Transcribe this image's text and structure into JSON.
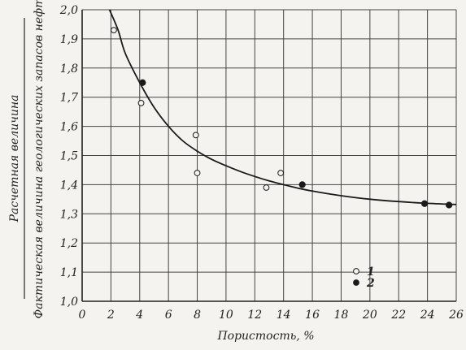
{
  "chart_data": {
    "type": "scatter",
    "title": "",
    "xlabel": "Пористость, %",
    "ylabel_numerator": "Расчетная величина",
    "ylabel_denominator": "Фактическая величина геологических запасов нефти",
    "xlim": [
      0,
      26
    ],
    "ylim": [
      1.0,
      2.0
    ],
    "x_ticks": [
      "0",
      "2",
      "4",
      "6",
      "8",
      "10",
      "12",
      "14",
      "16",
      "18",
      "20",
      "22",
      "24",
      "26"
    ],
    "y_ticks": [
      "1,0",
      "1,1",
      "1,2",
      "1,3",
      "1,4",
      "1,5",
      "1,6",
      "1,7",
      "1,8",
      "1,9",
      "2,0"
    ],
    "grid": true,
    "series": [
      {
        "name": "1",
        "marker": "open-circle",
        "points": [
          {
            "x": 2.2,
            "y": 1.93
          },
          {
            "x": 4.1,
            "y": 1.68
          },
          {
            "x": 7.9,
            "y": 1.57
          },
          {
            "x": 8.0,
            "y": 1.44
          },
          {
            "x": 12.8,
            "y": 1.39
          },
          {
            "x": 13.8,
            "y": 1.44
          }
        ]
      },
      {
        "name": "2",
        "marker": "filled-circle",
        "points": [
          {
            "x": 4.2,
            "y": 1.75
          },
          {
            "x": 15.3,
            "y": 1.4
          },
          {
            "x": 23.8,
            "y": 1.335
          },
          {
            "x": 25.5,
            "y": 1.33
          }
        ]
      }
    ],
    "curve": [
      {
        "x": 1.9,
        "y": 2.0
      },
      {
        "x": 2.5,
        "y": 1.93
      },
      {
        "x": 3.0,
        "y": 1.85
      },
      {
        "x": 4.0,
        "y": 1.75
      },
      {
        "x": 5.0,
        "y": 1.665
      },
      {
        "x": 6.0,
        "y": 1.6
      },
      {
        "x": 7.0,
        "y": 1.55
      },
      {
        "x": 8.0,
        "y": 1.515
      },
      {
        "x": 9.0,
        "y": 1.487
      },
      {
        "x": 10.0,
        "y": 1.465
      },
      {
        "x": 11.0,
        "y": 1.445
      },
      {
        "x": 12.0,
        "y": 1.428
      },
      {
        "x": 13.0,
        "y": 1.413
      },
      {
        "x": 14.0,
        "y": 1.4
      },
      {
        "x": 15.0,
        "y": 1.388
      },
      {
        "x": 16.0,
        "y": 1.378
      },
      {
        "x": 18.0,
        "y": 1.362
      },
      {
        "x": 20.0,
        "y": 1.35
      },
      {
        "x": 22.0,
        "y": 1.342
      },
      {
        "x": 24.0,
        "y": 1.336
      },
      {
        "x": 26.0,
        "y": 1.332
      }
    ],
    "legend": {
      "placement": "bottom-right",
      "items": [
        {
          "label": "1",
          "marker": "open-circle"
        },
        {
          "label": "2",
          "marker": "filled-circle"
        }
      ]
    }
  }
}
